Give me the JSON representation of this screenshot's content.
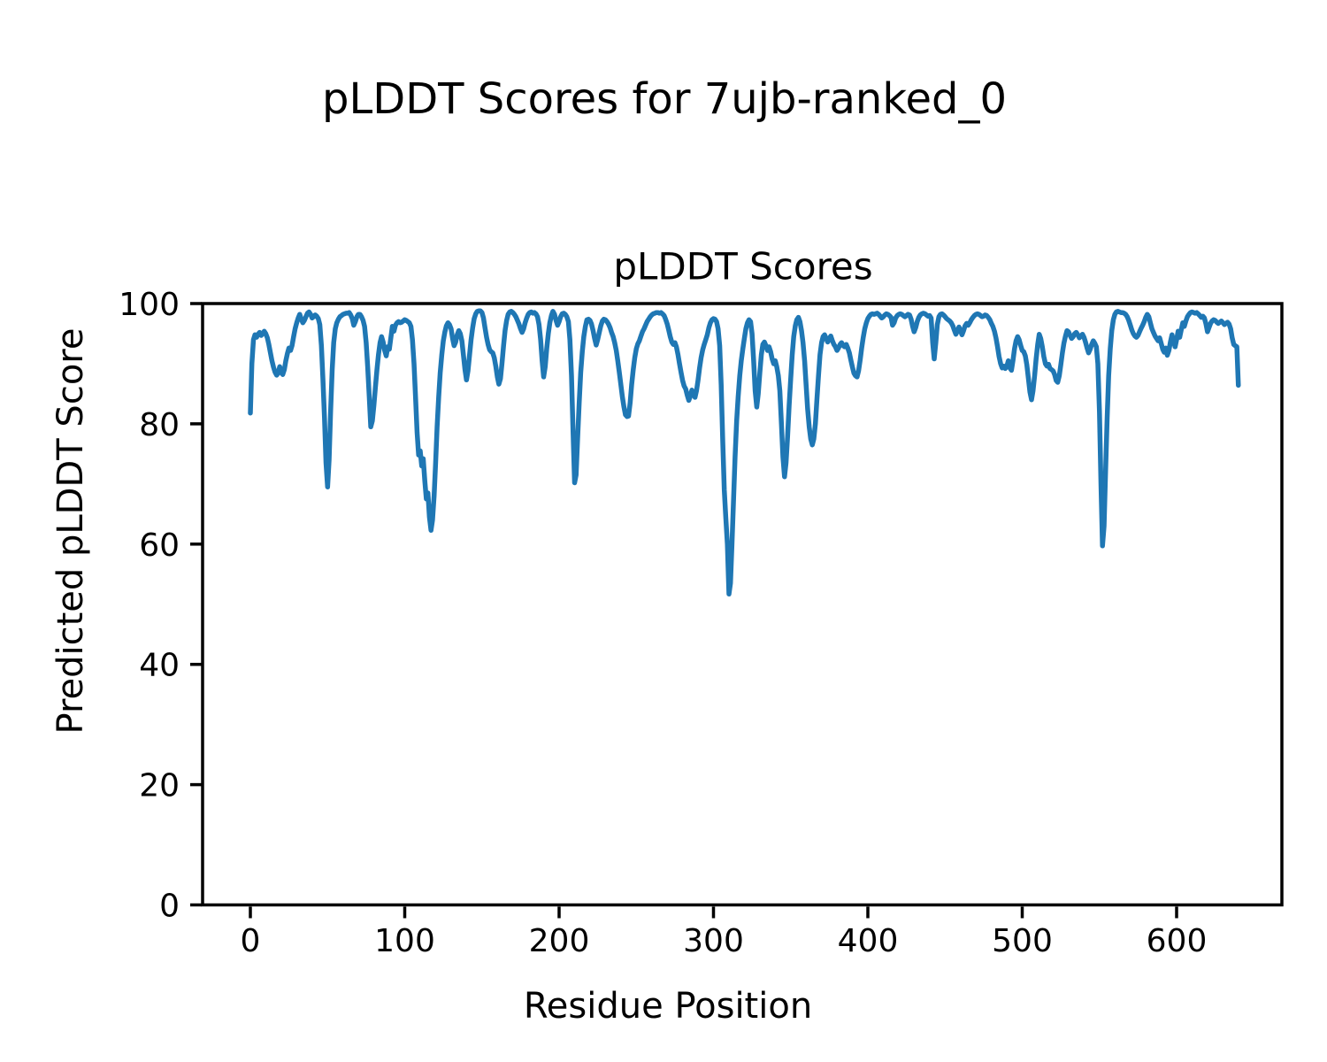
{
  "figure": {
    "suptitle": "pLDDT Scores for 7ujb-ranked_0",
    "axes_title": "pLDDT Scores",
    "xlabel": "Residue Position",
    "ylabel": "Predicted pLDDT Score",
    "background_color": "#ffffff",
    "text_color": "#000000",
    "spine_color": "#000000"
  },
  "chart_data": {
    "type": "line",
    "title": "pLDDT Scores",
    "suptitle": "pLDDT Scores for 7ujb-ranked_0",
    "xlabel": "Residue Position",
    "ylabel": "Predicted pLDDT Score",
    "xlim": [
      -32,
      672
    ],
    "ylim": [
      0,
      100
    ],
    "xticks": [
      0,
      100,
      200,
      300,
      400,
      500,
      600
    ],
    "yticks": [
      0,
      20,
      40,
      60,
      80,
      100
    ],
    "grid": false,
    "legend": null,
    "series": [
      {
        "name": "pLDDT",
        "color": "#1f77b4",
        "x_start": 0,
        "x_step": 1,
        "values": [
          81.8,
          90,
          94,
          94.8,
          94.4,
          94.9,
          95.2,
          94.7,
          95,
          95.4,
          95,
          94.3,
          93.2,
          91.8,
          90.5,
          89.4,
          88.6,
          88.1,
          88.4,
          89.5,
          88.6,
          88.2,
          89,
          90.5,
          91.7,
          92.6,
          92.2,
          93,
          94.5,
          95.8,
          96.8,
          97.6,
          98.2,
          97.4,
          96.8,
          97.2,
          97.8,
          98.4,
          98.6,
          98.2,
          97.6,
          97.8,
          98.1,
          97.9,
          97.5,
          96.5,
          93,
          87.5,
          81,
          73.5,
          69.5,
          74,
          82,
          89,
          93.5,
          95.8,
          96.8,
          97.4,
          97.8,
          98,
          98.2,
          98.3,
          98.4,
          98.4,
          98.5,
          98.1,
          97.5,
          96.4,
          97,
          97.8,
          98.2,
          98.2,
          97.8,
          97.2,
          96.2,
          93.5,
          89.5,
          84.5,
          79.5,
          80.5,
          83,
          86,
          89,
          91.5,
          93.5,
          94.5,
          93.6,
          92.2,
          91.3,
          92.8,
          92.4,
          94.3,
          96.2,
          95.4,
          96.4,
          96.8,
          97,
          96.8,
          96.9,
          97.1,
          97.3,
          97.2,
          97,
          96.8,
          96.2,
          94,
          90,
          84.5,
          78.5,
          74.8,
          75.5,
          73,
          74.2,
          70.5,
          67.5,
          68.5,
          64.5,
          62.3,
          64,
          68,
          73.5,
          79.5,
          84.5,
          88.5,
          91.5,
          93.8,
          95.3,
          96.3,
          96.8,
          96.5,
          95.8,
          94.2,
          93,
          93.6,
          94.8,
          95.5,
          95,
          93.8,
          91.5,
          89,
          87.3,
          88.8,
          91.5,
          94,
          96,
          97.5,
          98.3,
          98.7,
          98.8,
          98.8,
          98.5,
          97.6,
          96,
          94.4,
          93.2,
          92.3,
          92,
          91.8,
          91,
          89.5,
          87.8,
          86.6,
          87.5,
          90,
          93,
          95.5,
          97.2,
          98.2,
          98.6,
          98.7,
          98.5,
          98.2,
          97.8,
          97.2,
          96.6,
          95.8,
          95.2,
          95.8,
          96.8,
          97.6,
          98.2,
          98.5,
          98.6,
          98.4,
          98.5,
          98.3,
          97.8,
          96.5,
          94,
          90.5,
          87.8,
          89.5,
          92.5,
          95,
          96.8,
          98,
          98.7,
          98.2,
          97.2,
          96.4,
          97,
          97.8,
          98.3,
          98.4,
          98.2,
          97.8,
          97,
          94,
          88,
          79,
          70.2,
          71.5,
          77.5,
          83.5,
          88.5,
          92,
          94.5,
          96.2,
          97.3,
          97.4,
          97.2,
          96.6,
          95.5,
          94.2,
          93.1,
          94,
          95.2,
          96.3,
          97.1,
          97.4,
          97.3,
          97,
          96.6,
          96,
          95.2,
          94.5,
          93.5,
          92.2,
          90.5,
          88.5,
          86.5,
          84.5,
          82.8,
          81.5,
          81.2,
          81.3,
          83.5,
          86.5,
          89,
          91,
          92.5,
          93.3,
          93.8,
          94.6,
          95.3,
          95.8,
          96.4,
          97,
          97.4,
          97.8,
          98.1,
          98.3,
          98.4,
          98.5,
          98.5,
          98.4,
          98.5,
          98.3,
          98,
          97.4,
          96.6,
          95.6,
          94.5,
          93.6,
          93.2,
          93.5,
          92.8,
          91.5,
          90,
          88.5,
          87.2,
          86.3,
          85.8,
          84.8,
          83.9,
          84.6,
          85.6,
          85,
          84.4,
          85.5,
          87.2,
          89.3,
          91,
          92.3,
          93.2,
          94,
          94.8,
          96,
          96.8,
          97.3,
          97.5,
          97.4,
          97,
          95.8,
          93,
          86.5,
          77,
          69,
          64.2,
          60,
          51.7,
          53.5,
          60,
          67.5,
          74.5,
          80.5,
          84.5,
          88,
          90.5,
          92.5,
          94.2,
          95.8,
          96.8,
          97.3,
          97,
          95,
          90.5,
          85.5,
          82.8,
          85,
          88.5,
          91.5,
          93.2,
          93.6,
          93,
          92.2,
          92.8,
          92,
          90.8,
          90,
          90.5,
          89.5,
          88,
          85.5,
          80,
          74.5,
          71.2,
          73.5,
          78,
          83,
          87.5,
          91.5,
          94.5,
          96.3,
          97.3,
          97.7,
          97,
          95.5,
          93.5,
          90.5,
          86.5,
          82.5,
          79.5,
          77.5,
          76.5,
          77.5,
          80,
          84,
          88,
          91.5,
          93.5,
          94.5,
          94.8,
          94.2,
          93.6,
          94.2,
          94.6,
          93.8,
          93.2,
          92.8,
          92.2,
          92.6,
          93.2,
          93.5,
          93,
          92.8,
          93.2,
          92.6,
          91.8,
          90.6,
          89.4,
          88.4,
          88,
          87.8,
          88.8,
          90.6,
          92.6,
          94.4,
          95.8,
          96.8,
          97.5,
          97.9,
          98.2,
          98.3,
          98.2,
          98.3,
          98.4,
          98.2,
          97.9,
          97.6,
          97.8,
          98.1,
          98.3,
          98.2,
          98,
          97.7,
          96.4,
          96.8,
          97.6,
          98,
          98.2,
          98.3,
          98.2,
          98,
          97.8,
          98,
          98.2,
          98.1,
          97.4,
          96.2,
          95.3,
          96,
          97,
          97.7,
          98.1,
          98.3,
          98.4,
          98.3,
          98.1,
          97.9,
          98,
          97.6,
          93.5,
          90.8,
          93.5,
          96.5,
          97.8,
          98.2,
          98.3,
          98.1,
          97.8,
          97.5,
          97.3,
          97.1,
          96.8,
          96.3,
          95.6,
          94.9,
          95.4,
          96.1,
          95.5,
          94.8,
          95.5,
          96.3,
          96.7,
          96.4,
          96.8,
          97.3,
          97.7,
          98,
          98.2,
          98.3,
          98.2,
          98,
          97.8,
          97.9,
          98.1,
          98,
          97.7,
          97.3,
          96.7,
          96.2,
          95.4,
          94.3,
          92.8,
          91.2,
          90,
          89.3,
          89.6,
          89.2,
          89.6,
          90.5,
          89.3,
          88.9,
          90.5,
          92.5,
          93.8,
          94.5,
          94,
          93,
          92.2,
          92,
          91.3,
          89.8,
          87.5,
          85.3,
          84,
          85.5,
          88,
          90.8,
          93.2,
          94.9,
          94.2,
          92.8,
          91.2,
          90,
          89.6,
          89.9,
          89.2,
          89,
          88.8,
          88.2,
          87.2,
          86.9,
          88,
          89.8,
          91.8,
          93.4,
          94.6,
          95.5,
          95.3,
          94.7,
          94.2,
          94.5,
          95,
          95.2,
          94.8,
          94.3,
          94.6,
          94.9,
          94.4,
          93.6,
          92.6,
          91.8,
          92.4,
          93.2,
          93.8,
          93.4,
          92.8,
          90,
          82,
          70,
          59.7,
          63,
          72,
          81,
          88,
          92.5,
          95.5,
          97.3,
          98.2,
          98.6,
          98.7,
          98.6,
          98.5,
          98.5,
          98.4,
          98.2,
          97.8,
          97.2,
          96.4,
          95.6,
          95,
          94.6,
          94.4,
          94.7,
          95.3,
          95.9,
          96.4,
          97,
          97.7,
          98.2,
          97.8,
          96.8,
          95.8,
          95.2,
          94.6,
          94.2,
          93.8,
          94.3,
          93.4,
          92.4,
          91.9,
          92.6,
          91.4,
          92.2,
          93.6,
          94.8,
          93.8,
          92.8,
          94,
          95.4,
          94.4,
          95.6,
          96.8,
          96.2,
          97.1,
          97.8,
          98.2,
          98.5,
          98.6,
          98.5,
          98.4,
          98.5,
          98.3,
          98,
          97.7,
          97.9,
          97.6,
          96.6,
          95.3,
          96,
          96.7,
          97.1,
          97.3,
          97.2,
          96.9,
          96.7,
          96.9,
          97.1,
          96.8,
          96.5,
          96.7,
          96.9,
          96.6,
          95.8,
          94.3,
          93.2,
          93,
          92.8,
          86.4
        ]
      }
    ]
  }
}
